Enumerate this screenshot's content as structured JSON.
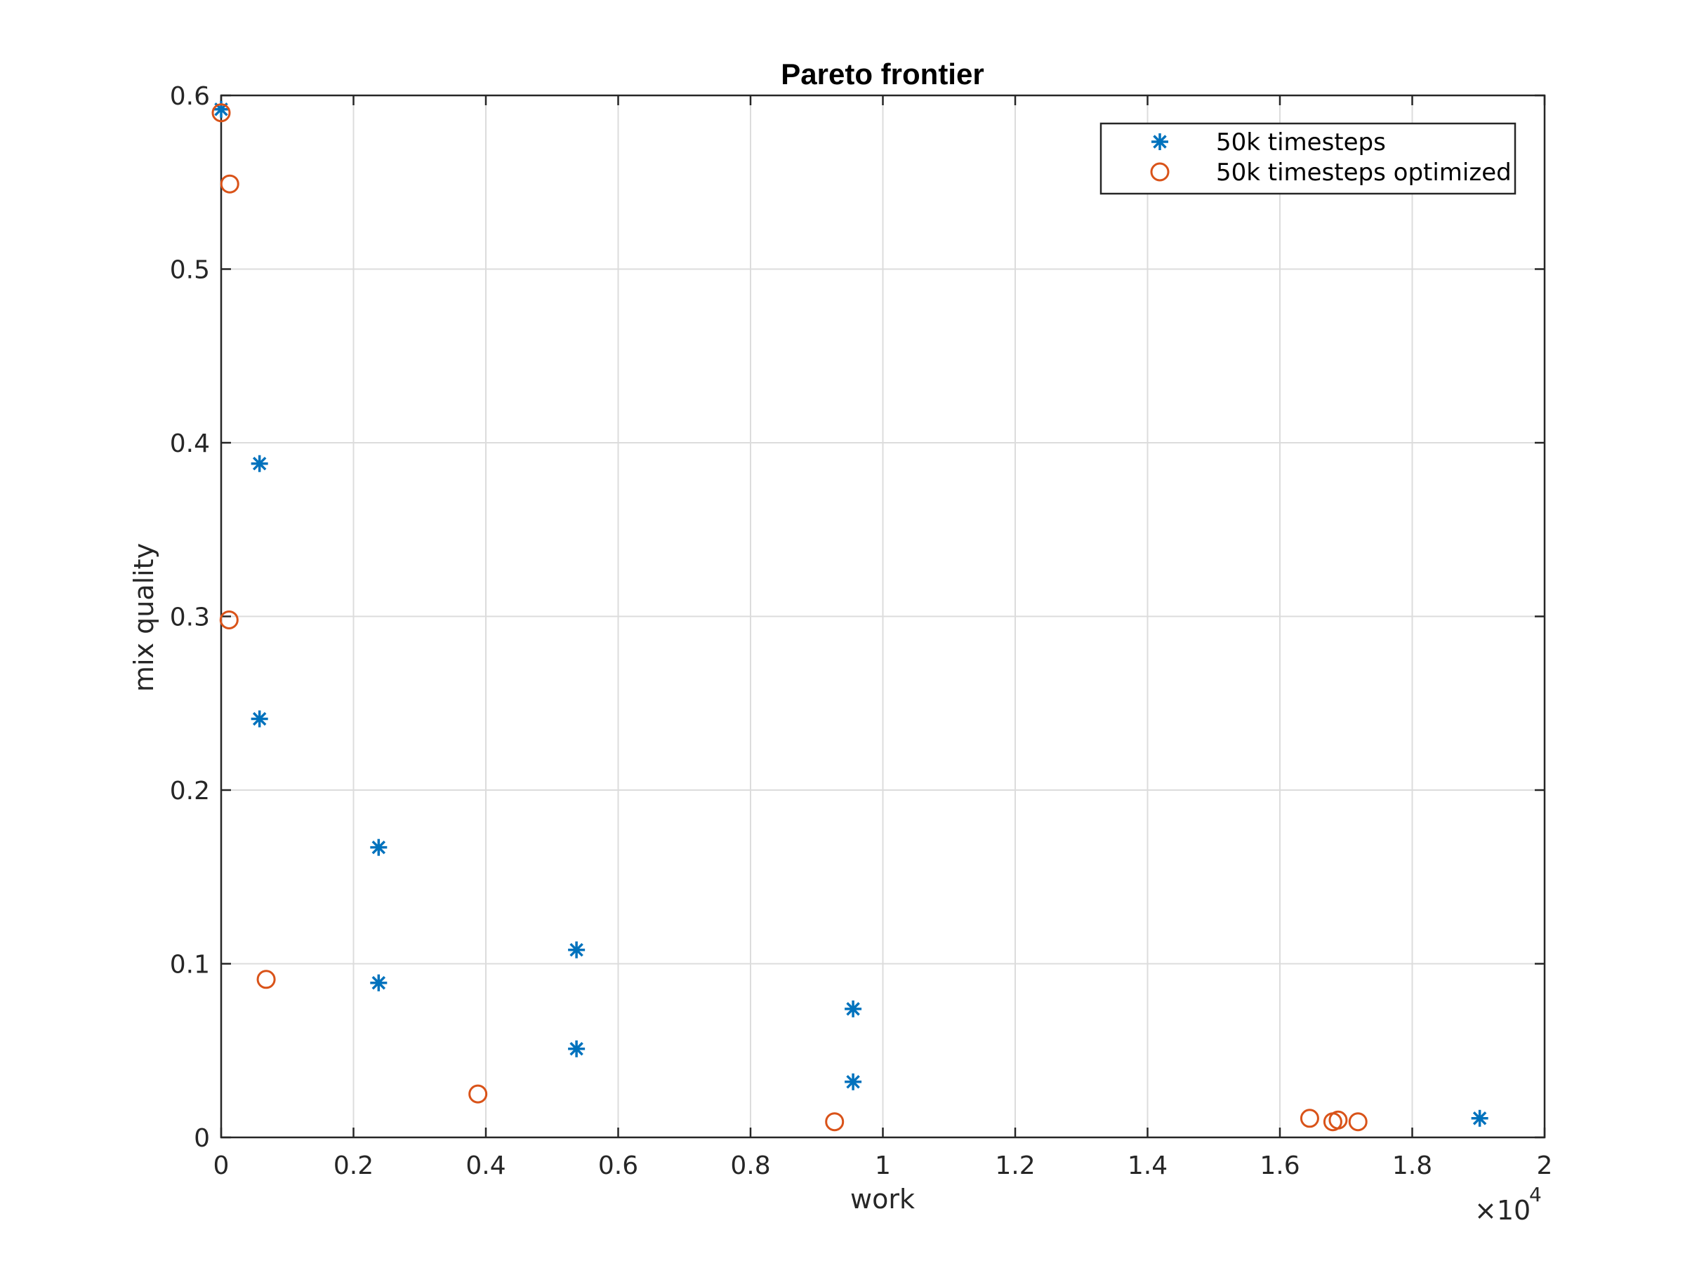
{
  "chart_data": {
    "type": "scatter",
    "title": "Pareto frontier",
    "xlabel": "work",
    "ylabel": "mix quality",
    "x_exponent_label": "×10",
    "x_exponent_power": "4",
    "xlim": [
      0,
      2
    ],
    "ylim": [
      0,
      0.6
    ],
    "xticks": [
      "0",
      "0.2",
      "0.4",
      "0.6",
      "0.8",
      "1",
      "1.2",
      "1.4",
      "1.6",
      "1.8",
      "2"
    ],
    "yticks": [
      "0",
      "0.1",
      "0.2",
      "0.3",
      "0.4",
      "0.5",
      "0.6"
    ],
    "grid": true,
    "legend_position": "top-right",
    "series": [
      {
        "name": "50k timesteps",
        "marker": "asterisk",
        "color": "#0072BD",
        "points": [
          [
            0.0,
            0.592
          ],
          [
            0.058,
            0.388
          ],
          [
            0.058,
            0.241
          ],
          [
            0.238,
            0.167
          ],
          [
            0.238,
            0.089
          ],
          [
            0.537,
            0.108
          ],
          [
            0.537,
            0.051
          ],
          [
            0.955,
            0.074
          ],
          [
            0.955,
            0.032
          ],
          [
            1.902,
            0.011
          ]
        ]
      },
      {
        "name": "50k timesteps optimized",
        "marker": "circle",
        "color": "#D95319",
        "points": [
          [
            0.0,
            0.59
          ],
          [
            0.013,
            0.549
          ],
          [
            0.012,
            0.298
          ],
          [
            0.068,
            0.091
          ],
          [
            0.388,
            0.025
          ],
          [
            0.927,
            0.009
          ],
          [
            1.645,
            0.011
          ],
          [
            1.68,
            0.009
          ],
          [
            1.688,
            0.01
          ],
          [
            1.718,
            0.009
          ]
        ]
      }
    ]
  }
}
